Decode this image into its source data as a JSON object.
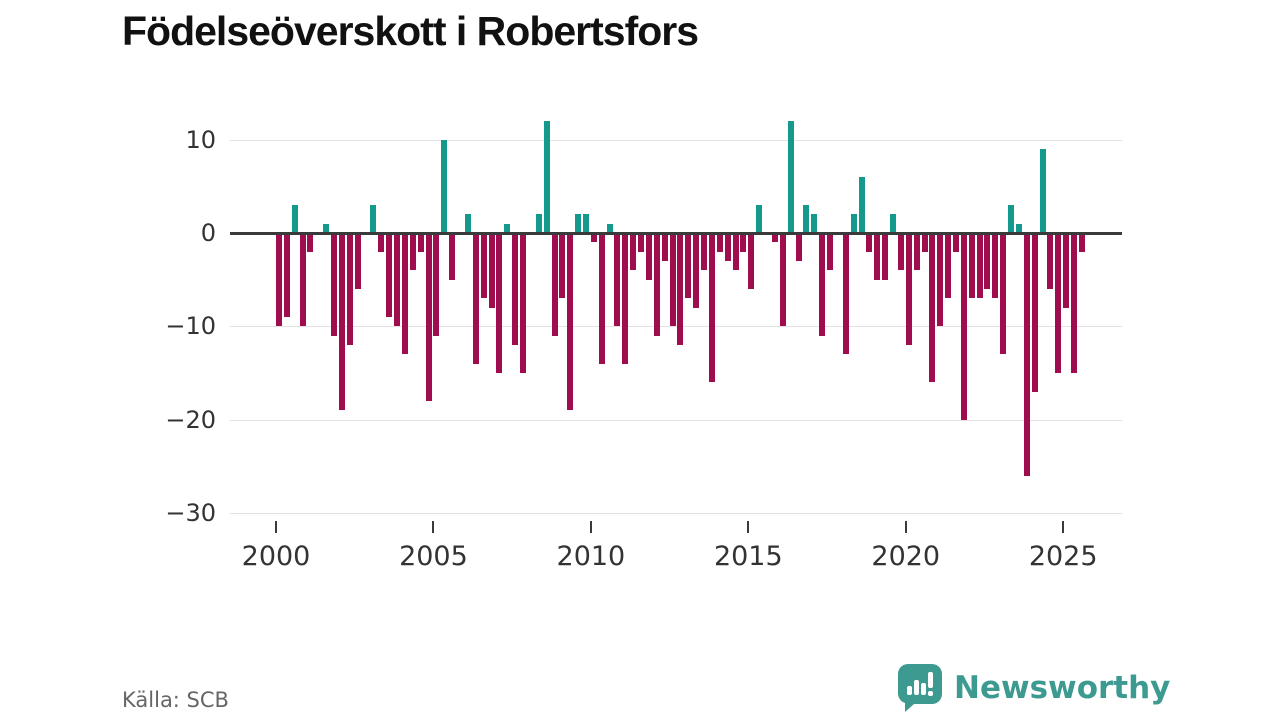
{
  "title": "Födelseöverskott i Robertsfors",
  "source": "Källa: SCB",
  "brand": {
    "name": "Newsworthy",
    "color": "#3d9a90"
  },
  "colors": {
    "positive_bar": "#149a8c",
    "negative_bar": "#a00d4e",
    "zero_line": "#3a3a3a",
    "gridline": "#e2e2e2",
    "axis_text": "#333333",
    "title_text": "#111111",
    "source_text": "#666666"
  },
  "chart_data": {
    "type": "bar",
    "title": "Födelseöverskott i Robertsfors",
    "period": "quarterly",
    "start_year": 2000,
    "start_quarter": 1,
    "x_tick_years": [
      "2000",
      "2005",
      "2010",
      "2015",
      "2020",
      "2025"
    ],
    "y_tick_labels": [
      "10",
      "0",
      "−10",
      "−20",
      "−30"
    ],
    "y_tick_values": [
      10,
      0,
      -10,
      -20,
      -30
    ],
    "ylim": [
      -30,
      13
    ],
    "grid": true,
    "legend": false,
    "series": [
      {
        "name": "Födelseöverskott",
        "values": [
          -10,
          -9,
          3,
          -10,
          -2,
          0,
          1,
          -11,
          -19,
          -12,
          -6,
          0,
          3,
          -2,
          -9,
          -10,
          -13,
          -4,
          -2,
          -18,
          -11,
          10,
          -5,
          0,
          2,
          -14,
          -7,
          -8,
          -15,
          1,
          -12,
          -15,
          0,
          2,
          12,
          -11,
          -7,
          -19,
          2,
          2,
          -1,
          -14,
          1,
          -10,
          -14,
          -4,
          -2,
          -5,
          -11,
          -3,
          -10,
          -12,
          -7,
          -8,
          -4,
          -16,
          -2,
          -3,
          -4,
          -2,
          -6,
          3,
          0,
          -1,
          -10,
          12,
          -3,
          3,
          2,
          -11,
          -4,
          0,
          -13,
          2,
          6,
          -2,
          -5,
          -5,
          2,
          -4,
          -12,
          -4,
          -2,
          -16,
          -10,
          -7,
          -2,
          -20,
          -7,
          -7,
          -6,
          -7,
          -13,
          3,
          1,
          -26,
          -17,
          9,
          -6,
          -15,
          -8,
          -15,
          -2
        ]
      }
    ]
  }
}
